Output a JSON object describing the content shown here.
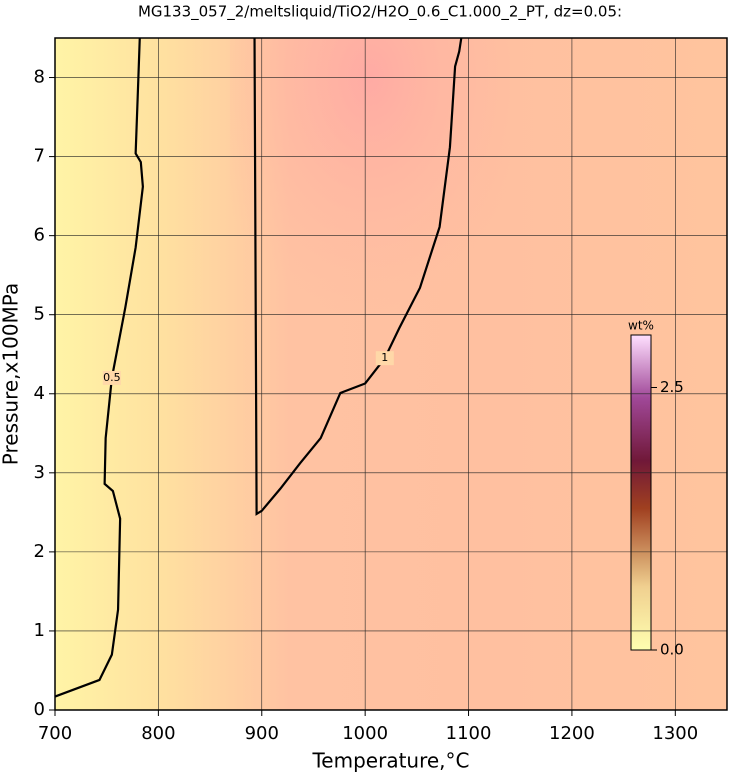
{
  "chart_data": {
    "type": "contour",
    "title": "MG133_057_2/meltsliquid/TiO2/H2O_0.6_C1.000_2_PT, dz=0.05:",
    "x_label": "Temperature,°C",
    "y_label": "Pressure,x100MPa",
    "xlim": [
      700,
      1350
    ],
    "ylim": [
      0,
      8.5
    ],
    "xticks": [
      700,
      800,
      900,
      1000,
      1100,
      1200,
      1300
    ],
    "yticks": [
      0,
      1,
      2,
      3,
      4,
      5,
      6,
      7,
      8
    ],
    "grid": true,
    "colorbar": {
      "label": "wt%",
      "clim": [
        0,
        3.0
      ],
      "ticks": [
        {
          "value": 0,
          "label": "0.0"
        },
        {
          "value": 2.5,
          "label": "2.5"
        }
      ]
    },
    "contours": [
      {
        "level": 0.5,
        "x": [
          700,
          743,
          755,
          761,
          763,
          756,
          748,
          749,
          755,
          768,
          778,
          785,
          783,
          778,
          780,
          782
        ],
        "y": [
          0.17,
          0.38,
          0.7,
          1.27,
          2.42,
          2.77,
          2.86,
          3.44,
          4.2,
          5.09,
          5.85,
          6.62,
          6.93,
          7.04,
          7.76,
          8.5
        ]
      },
      {
        "level": 1,
        "x": [
          893,
          895,
          900,
          918,
          937,
          957,
          976,
          1000,
          1019,
          1033,
          1053,
          1072,
          1082,
          1087,
          1091,
          1093
        ],
        "y": [
          8.5,
          2.48,
          2.52,
          2.8,
          3.12,
          3.44,
          4.01,
          4.13,
          4.45,
          4.83,
          5.34,
          6.11,
          7.12,
          8.14,
          8.33,
          8.5
        ]
      }
    ]
  }
}
